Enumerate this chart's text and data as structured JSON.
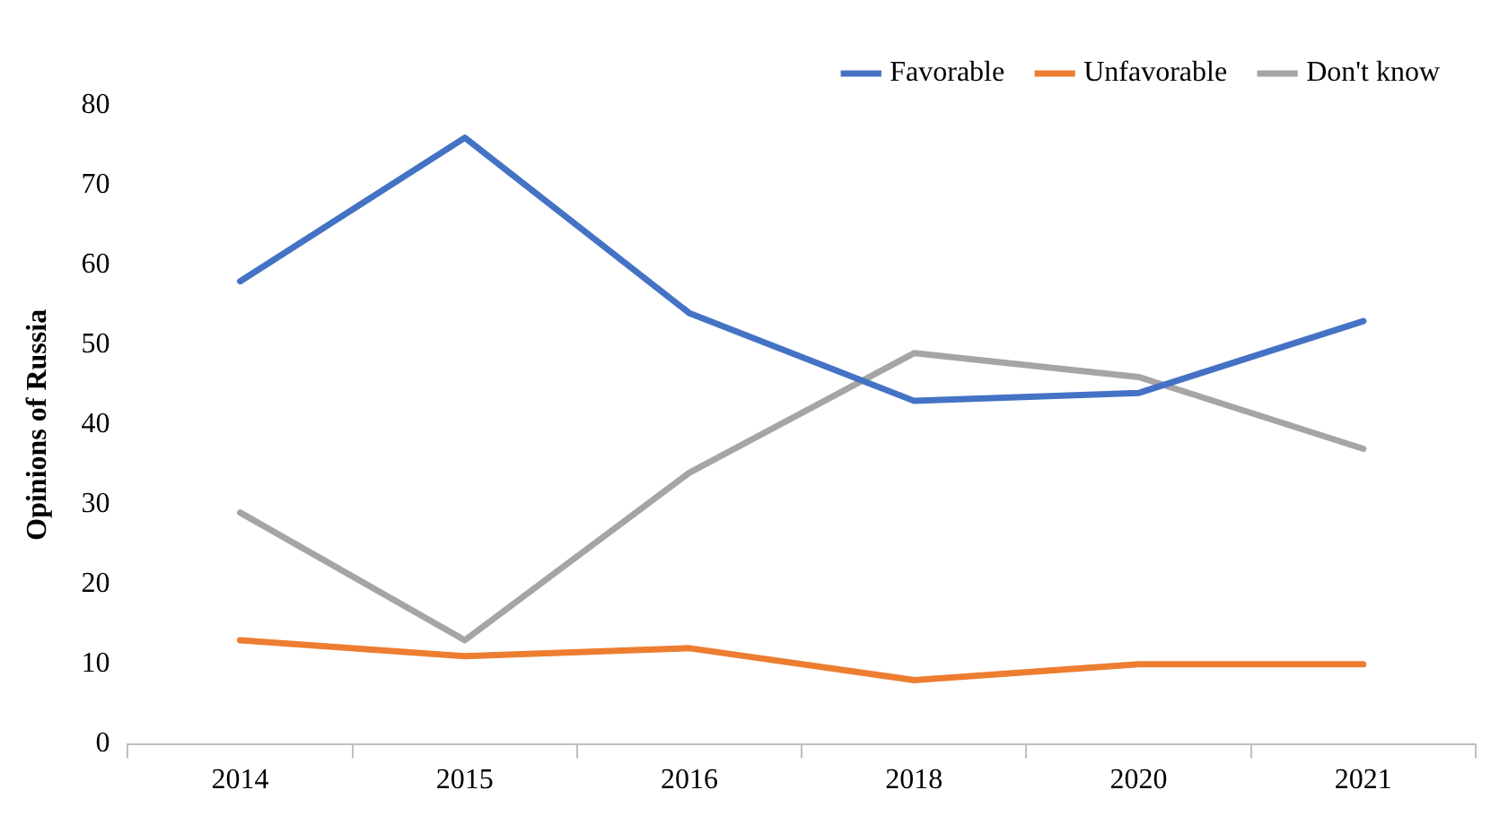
{
  "chart_data": {
    "type": "line",
    "ylabel": "Opinions of Russia",
    "categories": [
      "2014",
      "2015",
      "2016",
      "2018",
      "2020",
      "2021"
    ],
    "series": [
      {
        "name": "Favorable",
        "color": "#4472c4",
        "values": [
          58,
          76,
          54,
          43,
          44,
          53
        ]
      },
      {
        "name": "Unfavorable",
        "color": "#ed7d31",
        "values": [
          13,
          11,
          12,
          8,
          10,
          10
        ]
      },
      {
        "name": "Don't know",
        "color": "#a5a5a5",
        "values": [
          29,
          13,
          34,
          49,
          46,
          37
        ]
      }
    ],
    "ylim": [
      0,
      80
    ],
    "yticks": [
      0,
      10,
      20,
      30,
      40,
      50,
      60,
      70,
      80
    ],
    "grid": false,
    "legend": "top right",
    "marker": "none"
  }
}
